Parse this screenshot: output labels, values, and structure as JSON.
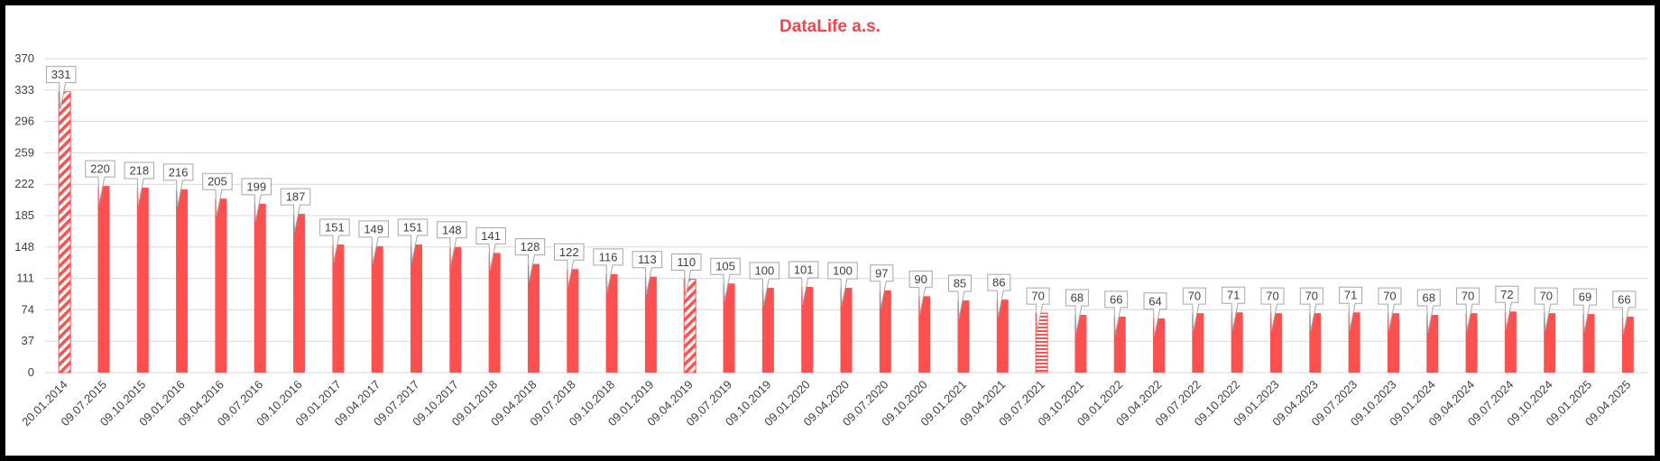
{
  "chart_data": {
    "type": "bar",
    "title": "DataLife a.s.",
    "xlabel": "",
    "ylabel": "",
    "ylim": [
      0,
      370
    ],
    "yticks": [
      0,
      37,
      74,
      111,
      148,
      185,
      222,
      259,
      296,
      333,
      370
    ],
    "grid": true,
    "legend": "none",
    "colors": {
      "bar": "#FF5050",
      "title": "#F0464B",
      "grid": "#D9D9D9",
      "text": "#404040"
    },
    "categories": [
      "20.01.2014",
      "09.07.2015",
      "09.10.2015",
      "09.01.2016",
      "09.04.2016",
      "09.07.2016",
      "09.10.2016",
      "09.01.2017",
      "09.04.2017",
      "09.07.2017",
      "09.10.2017",
      "09.01.2018",
      "09.04.2018",
      "09.07.2018",
      "09.10.2018",
      "09.01.2019",
      "09.04.2019",
      "09.07.2019",
      "09.10.2019",
      "09.01.2020",
      "09.04.2020",
      "09.07.2020",
      "09.10.2020",
      "09.01.2021",
      "09.04.2021",
      "09.07.2021",
      "09.10.2021",
      "09.01.2022",
      "09.04.2022",
      "09.07.2022",
      "09.10.2022",
      "09.01.2023",
      "09.04.2023",
      "09.07.2023",
      "09.10.2023",
      "09.01.2024",
      "09.04.2024",
      "09.07.2024",
      "09.10.2024",
      "09.01.2025",
      "09.04.2025"
    ],
    "values": [
      331,
      220,
      218,
      216,
      205,
      199,
      187,
      151,
      149,
      151,
      148,
      141,
      128,
      122,
      116,
      113,
      110,
      105,
      100,
      101,
      100,
      97,
      90,
      85,
      86,
      70,
      68,
      66,
      64,
      70,
      71,
      70,
      70,
      71,
      70,
      68,
      70,
      72,
      70,
      69,
      66
    ],
    "bar_patterns": [
      "diagonal",
      "solid",
      "solid",
      "solid",
      "solid",
      "solid",
      "solid",
      "solid",
      "solid",
      "solid",
      "solid",
      "solid",
      "solid",
      "solid",
      "solid",
      "solid",
      "diagonal",
      "solid",
      "solid",
      "solid",
      "solid",
      "solid",
      "solid",
      "solid",
      "solid",
      "horizontal",
      "solid",
      "solid",
      "solid",
      "solid",
      "solid",
      "solid",
      "solid",
      "solid",
      "solid",
      "solid",
      "solid",
      "solid",
      "solid",
      "solid",
      "solid"
    ]
  }
}
